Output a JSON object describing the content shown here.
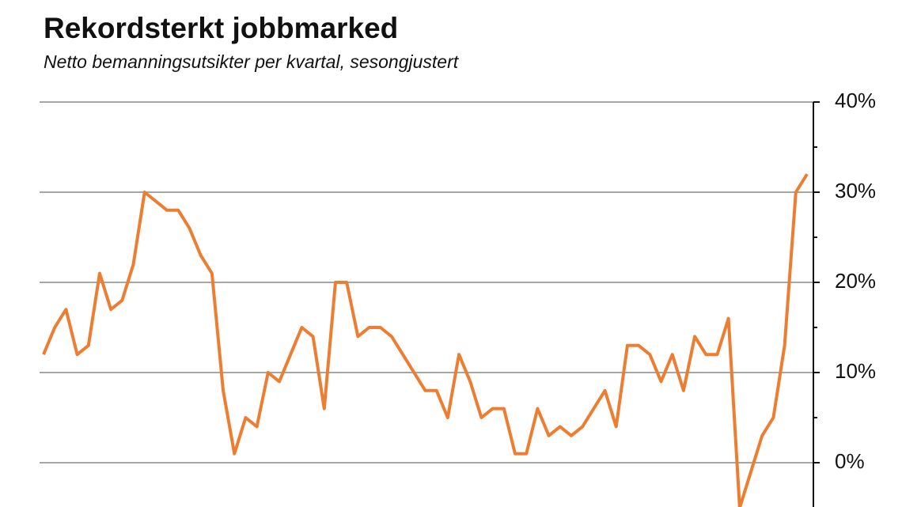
{
  "chart_data": {
    "type": "line",
    "title": "Rekordsterkt jobbmarked",
    "subtitle": "Netto bemanningsutsikter per kvartal, sesongjustert",
    "categories": [
      null,
      null,
      null,
      null,
      null,
      null,
      null,
      null,
      null,
      null,
      null,
      null,
      null,
      null,
      null,
      null,
      null,
      null,
      null,
      null,
      null,
      null,
      null,
      null,
      null,
      null,
      null,
      null,
      null,
      null,
      null,
      null,
      null,
      null,
      null,
      null,
      null,
      null,
      null,
      null,
      null,
      null,
      null,
      null,
      null,
      null,
      null,
      null,
      null,
      null,
      null,
      null,
      null,
      null,
      null,
      null,
      null,
      null,
      null,
      null,
      null,
      null,
      null,
      null,
      null,
      null,
      null,
      null,
      null
    ],
    "values": [
      12,
      15,
      17,
      12,
      13,
      21,
      17,
      18,
      22,
      30,
      29,
      28,
      28,
      26,
      23,
      21,
      8,
      1,
      5,
      4,
      10,
      9,
      12,
      15,
      14,
      6,
      20,
      20,
      14,
      15,
      15,
      14,
      12,
      10,
      8,
      8,
      5,
      12,
      9,
      5,
      6,
      6,
      1,
      1,
      6,
      3,
      4,
      3,
      4,
      6,
      8,
      4,
      13,
      13,
      12,
      9,
      12,
      8,
      14,
      12,
      12,
      16,
      -5,
      -1,
      3,
      5,
      13,
      30,
      32
    ],
    "color": "#ed7d31",
    "ylim": [
      -5,
      40
    ],
    "yticks": [
      {
        "value": 0,
        "label": "0%"
      },
      {
        "value": 10,
        "label": "10%"
      },
      {
        "value": 20,
        "label": "20%"
      },
      {
        "value": 30,
        "label": "30%"
      },
      {
        "value": 40,
        "label": "40%"
      }
    ],
    "minor_yticks": [
      5,
      15,
      25,
      35
    ],
    "grid": true,
    "y_axis_side": "right"
  }
}
